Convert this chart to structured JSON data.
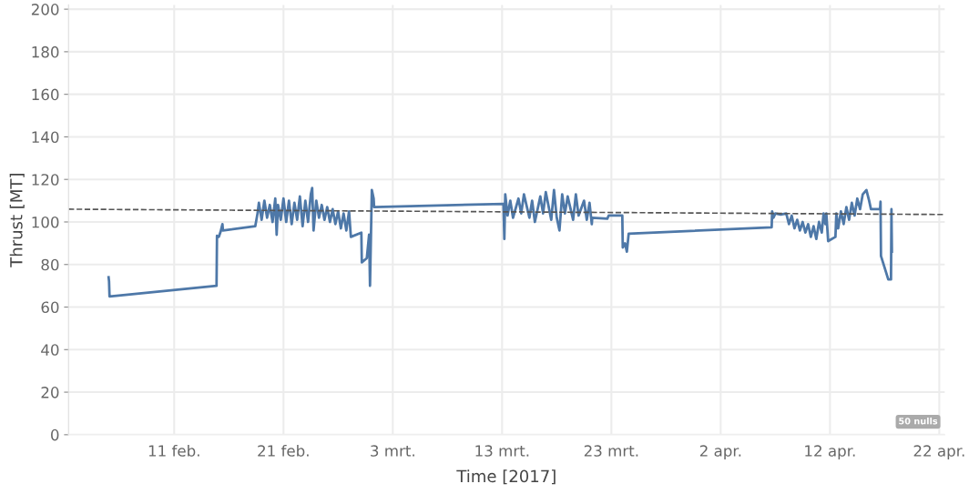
{
  "chart_data": {
    "type": "line",
    "xlabel": "Time [2017]",
    "ylabel": "Thrust [MT]",
    "xlim": [
      "2017-02-01T08:00",
      "2017-04-22T12:00"
    ],
    "xticks": [
      {
        "value": "2017-02-11",
        "label": "11 feb."
      },
      {
        "value": "2017-02-21",
        "label": "21 feb."
      },
      {
        "value": "2017-03-03",
        "label": "3 mrt."
      },
      {
        "value": "2017-03-13",
        "label": "13 mrt."
      },
      {
        "value": "2017-03-23",
        "label": "23 mrt."
      },
      {
        "value": "2017-04-02",
        "label": "2 apr."
      },
      {
        "value": "2017-04-12",
        "label": "12 apr."
      },
      {
        "value": "2017-04-22",
        "label": "22 apr."
      }
    ],
    "ylim": [
      0,
      202
    ],
    "yticks": [
      0,
      20,
      40,
      60,
      80,
      100,
      120,
      140,
      160,
      180,
      200
    ],
    "grid": true,
    "legend": false,
    "marker": "none",
    "annotations": [
      "50 nulls"
    ],
    "series": [
      {
        "color": "#4e78a8",
        "line_style": "solid",
        "x": [
          "2017-02-05T00:00",
          "2017-02-05T01:00",
          "2017-02-05T02:00",
          "2017-02-14T21:00",
          "2017-02-14T22:00",
          "2017-02-15T02:00",
          "2017-02-15T06:00",
          "2017-02-15T10:00",
          "2017-02-15T11:00",
          "2017-02-18T10:00",
          "2017-02-18T15:00",
          "2017-02-18T18:00",
          "2017-02-19T00:00",
          "2017-02-19T06:00",
          "2017-02-19T12:00",
          "2017-02-19T18:00",
          "2017-02-20T00:00",
          "2017-02-20T06:00",
          "2017-02-20T09:00",
          "2017-02-20T12:00",
          "2017-02-20T18:00",
          "2017-02-21T00:00",
          "2017-02-21T06:00",
          "2017-02-21T12:00",
          "2017-02-21T18:00",
          "2017-02-22T00:00",
          "2017-02-22T06:00",
          "2017-02-22T12:00",
          "2017-02-22T18:00",
          "2017-02-23T00:00",
          "2017-02-23T06:00",
          "2017-02-23T12:00",
          "2017-02-23T15:00",
          "2017-02-23T18:00",
          "2017-02-24T00:00",
          "2017-02-24T06:00",
          "2017-02-24T12:00",
          "2017-02-24T18:00",
          "2017-02-25T00:00",
          "2017-02-25T06:00",
          "2017-02-25T12:00",
          "2017-02-25T18:00",
          "2017-02-26T00:00",
          "2017-02-26T06:00",
          "2017-02-26T12:00",
          "2017-02-26T18:00",
          "2017-02-27T00:00",
          "2017-02-27T04:00",
          "2017-02-28T03:00",
          "2017-02-28T04:00",
          "2017-02-28T15:00",
          "2017-02-28T20:00",
          "2017-02-28T22:00",
          "2017-03-01T02:00",
          "2017-03-01T06:00",
          "2017-03-01T07:00",
          "2017-03-13T03:00",
          "2017-03-13T05:00",
          "2017-03-13T07:00",
          "2017-03-13T12:00",
          "2017-03-13T18:00",
          "2017-03-14T00:00",
          "2017-03-14T12:00",
          "2017-03-14T18:00",
          "2017-03-15T00:00",
          "2017-03-15T12:00",
          "2017-03-15T18:00",
          "2017-03-16T00:00",
          "2017-03-16T12:00",
          "2017-03-16T18:00",
          "2017-03-17T00:00",
          "2017-03-17T12:00",
          "2017-03-17T18:00",
          "2017-03-18T00:00",
          "2017-03-18T06:00",
          "2017-03-18T12:00",
          "2017-03-18T18:00",
          "2017-03-19T00:00",
          "2017-03-19T12:00",
          "2017-03-19T18:00",
          "2017-03-20T00:00",
          "2017-03-20T12:00",
          "2017-03-20T18:00",
          "2017-03-21T00:00",
          "2017-03-21T05:00",
          "2017-03-21T06:00",
          "2017-03-22T15:00",
          "2017-03-22T18:00",
          "2017-03-24T00:00",
          "2017-03-24T01:00",
          "2017-03-24T06:00",
          "2017-03-24T10:00",
          "2017-03-24T14:00",
          "2017-04-06T16:00",
          "2017-04-06T17:00",
          "2017-04-06T20:00",
          "2017-04-07T00:00",
          "2017-04-07T12:00",
          "2017-04-08T00:00",
          "2017-04-08T06:00",
          "2017-04-08T12:00",
          "2017-04-08T18:00",
          "2017-04-09T00:00",
          "2017-04-09T06:00",
          "2017-04-09T12:00",
          "2017-04-09T18:00",
          "2017-04-10T00:00",
          "2017-04-10T06:00",
          "2017-04-10T12:00",
          "2017-04-10T18:00",
          "2017-04-11T00:00",
          "2017-04-11T06:00",
          "2017-04-11T10:00",
          "2017-04-11T14:00",
          "2017-04-11T16:00",
          "2017-04-11T20:00",
          "2017-04-12T12:00",
          "2017-04-12T14:00",
          "2017-04-12T18:00",
          "2017-04-13T00:00",
          "2017-04-13T06:00",
          "2017-04-13T12:00",
          "2017-04-13T18:00",
          "2017-04-14T00:00",
          "2017-04-14T06:00",
          "2017-04-14T12:00",
          "2017-04-14T18:00",
          "2017-04-15T00:00",
          "2017-04-15T08:00",
          "2017-04-15T14:00",
          "2017-04-15T18:00",
          "2017-04-16T14:00",
          "2017-04-16T15:00",
          "2017-04-16T16:00",
          "2017-04-17T08:00",
          "2017-04-17T14:00",
          "2017-04-17T15:00",
          "2017-04-17T16:00"
        ],
        "values": [
          74,
          72,
          65,
          70,
          93.5,
          93,
          95.5,
          99,
          96,
          98,
          104,
          109,
          101,
          110,
          102,
          108,
          100,
          111,
          94,
          108,
          101,
          111,
          100,
          110,
          99,
          109,
          101,
          112,
          98,
          110,
          100,
          113,
          116,
          96,
          110,
          102,
          108,
          101,
          107,
          100,
          106,
          99,
          105,
          97,
          104,
          96,
          105,
          93,
          95,
          81,
          83,
          94,
          70,
          115,
          111,
          107,
          108.5,
          92,
          113,
          103,
          110,
          102,
          111,
          104,
          113,
          102,
          110,
          100,
          112,
          104,
          114,
          101,
          115,
          102,
          96,
          113,
          104,
          112,
          101,
          113,
          103,
          110,
          101,
          109,
          99,
          102,
          101.5,
          103,
          103,
          88,
          90,
          86,
          94.5,
          97.5,
          105,
          102,
          104,
          103.5,
          104,
          99,
          103,
          97,
          101,
          96,
          100,
          95,
          99,
          93,
          98,
          92,
          100,
          95,
          104,
          99,
          104,
          91,
          93,
          104,
          97,
          105,
          99,
          107,
          101,
          109,
          103,
          111,
          106,
          113,
          115,
          110,
          106,
          106,
          109.5,
          84,
          73,
          73,
          106,
          86
        ]
      },
      {
        "type": "line",
        "color": "#555555",
        "line_style": "dashed",
        "x": [
          "2017-02-01T08:00",
          "2017-04-22T12:00"
        ],
        "values": [
          106,
          103.5
        ]
      }
    ]
  }
}
